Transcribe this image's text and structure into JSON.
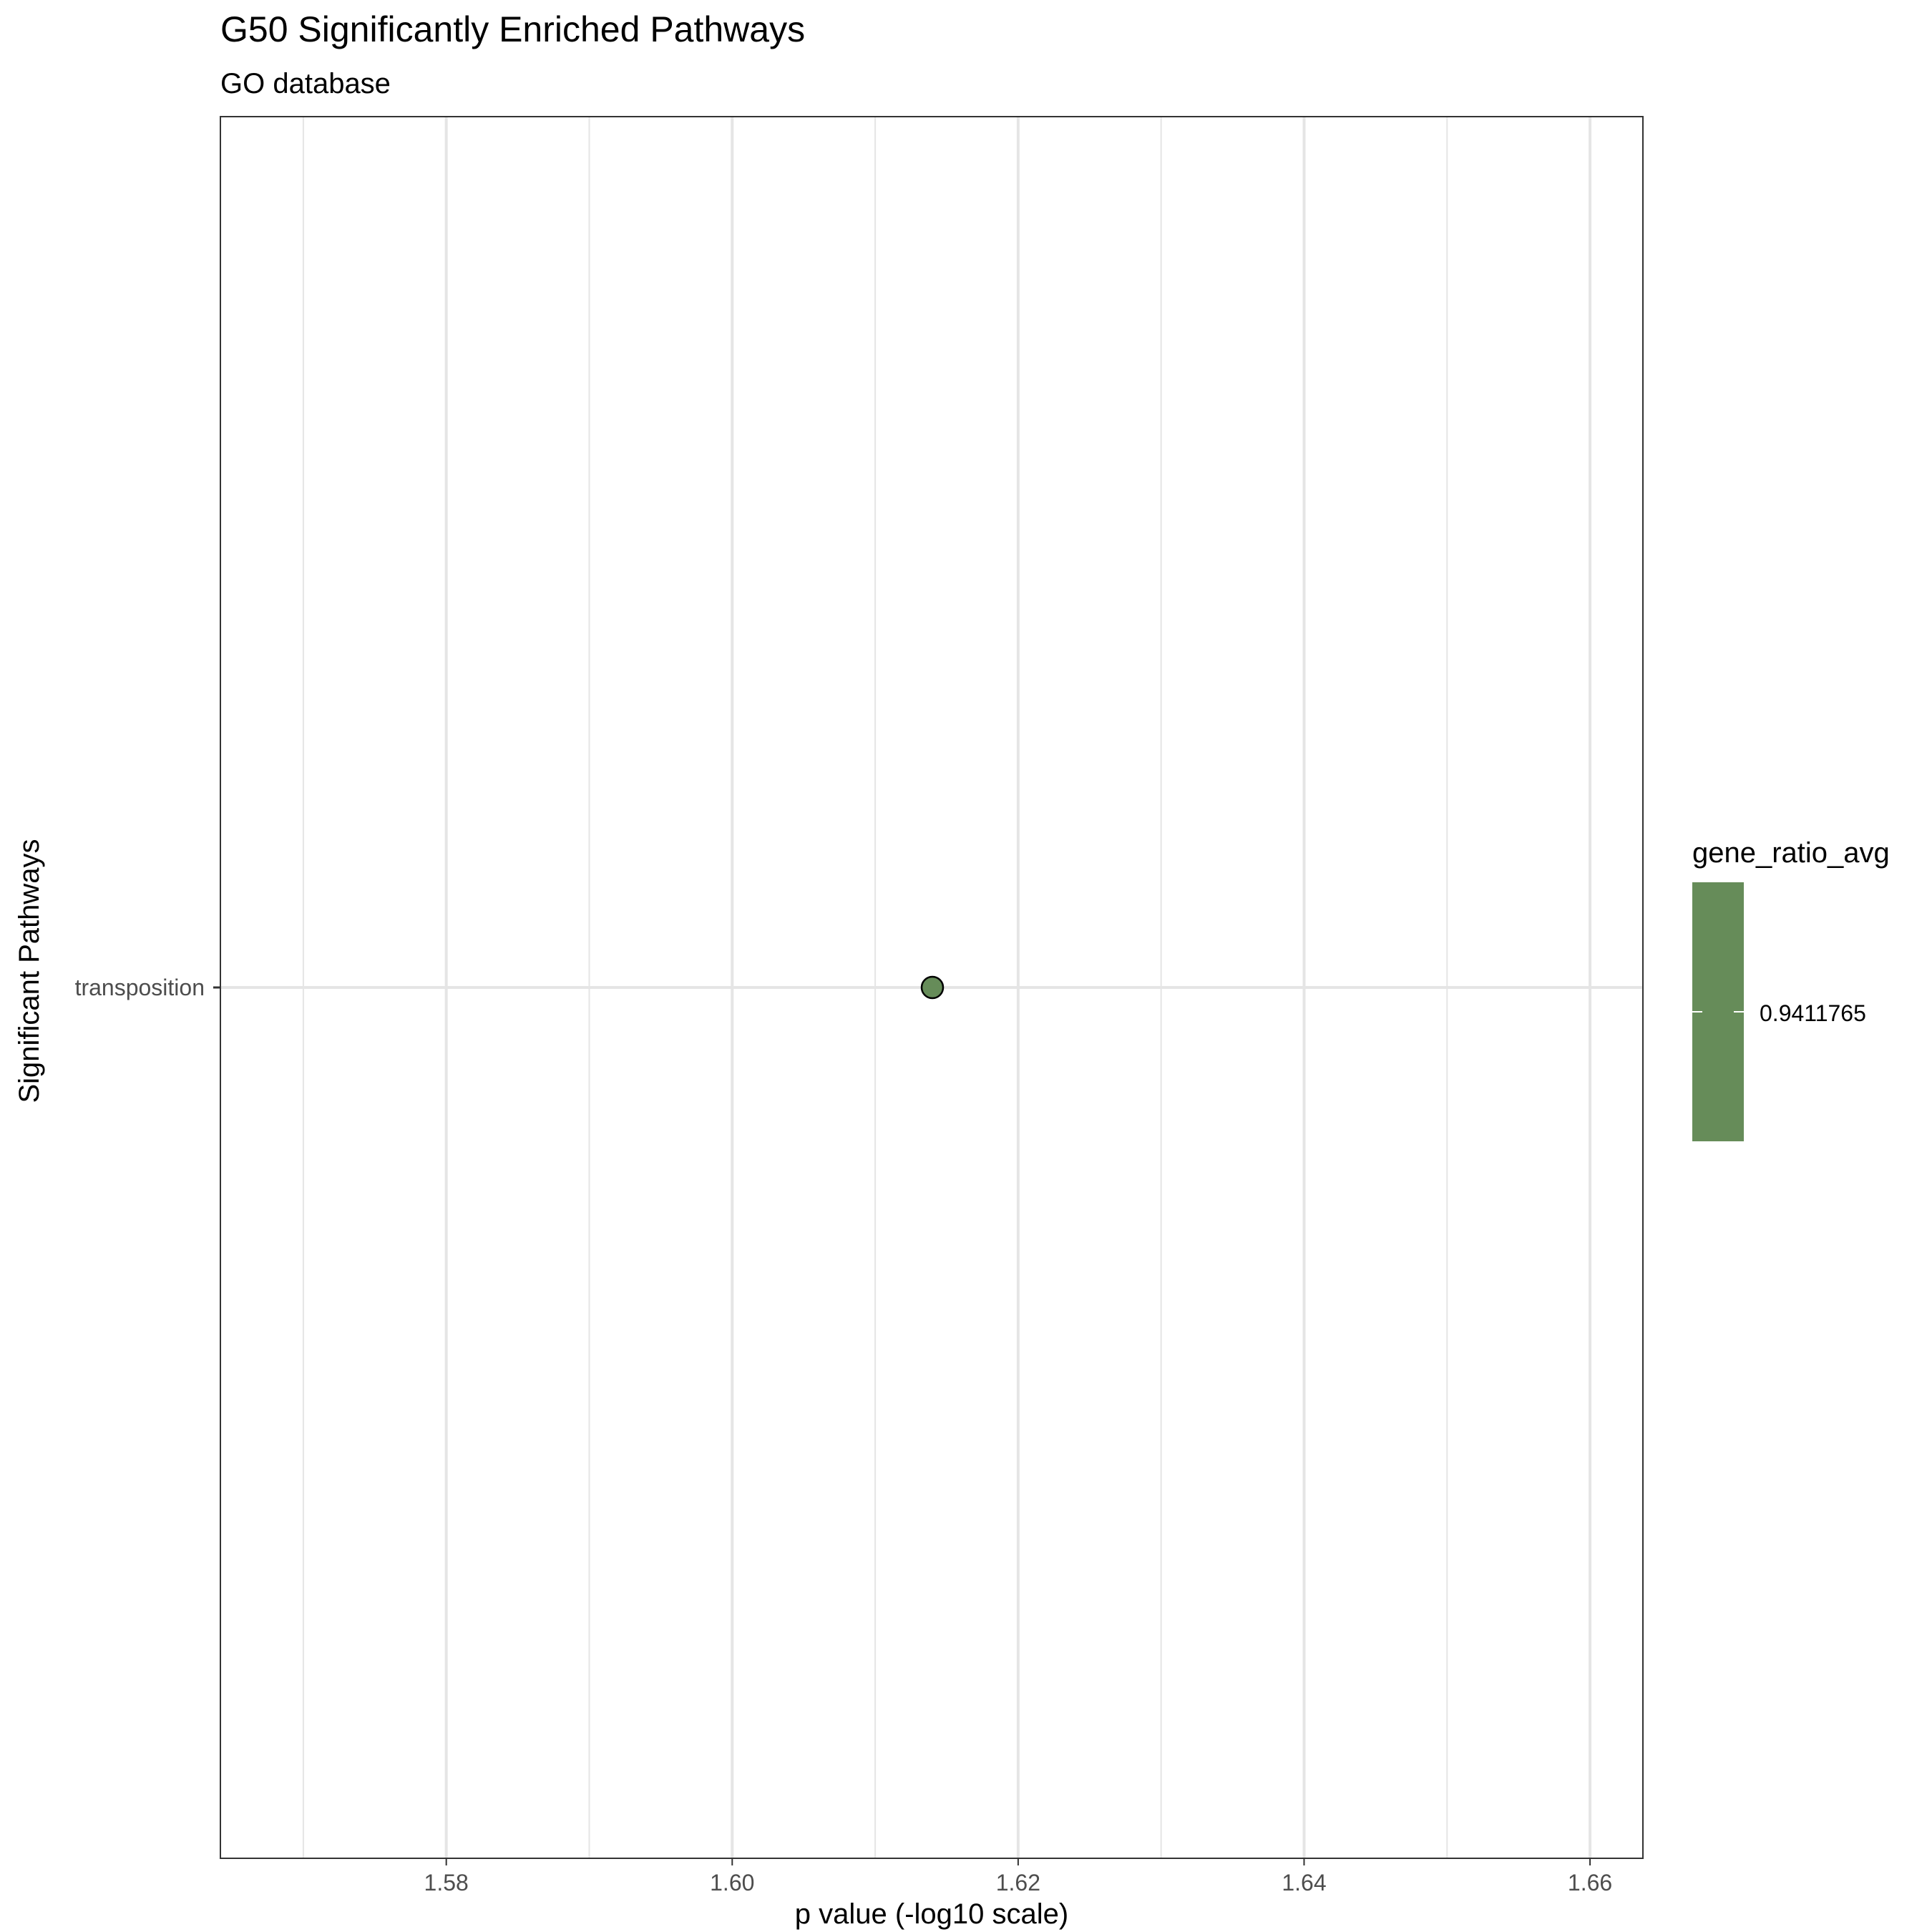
{
  "chart_data": {
    "type": "scatter",
    "title": "G50 Significantly Enriched Pathways",
    "subtitle": "GO database",
    "xlabel": "p value (-log10 scale)",
    "ylabel": "Significant Pathways",
    "xlim": [
      1.5642,
      1.6637
    ],
    "x_ticks": [
      1.58,
      1.6,
      1.62,
      1.64,
      1.66
    ],
    "x_tick_labels": [
      "1.58",
      "1.60",
      "1.62",
      "1.64",
      "1.66"
    ],
    "x_minor_ticks": [
      1.57,
      1.59,
      1.61,
      1.63,
      1.65
    ],
    "categories": [
      "transposition"
    ],
    "grid": true,
    "points": [
      {
        "category": "transposition",
        "x": 1.614,
        "gene_ratio_avg": 0.9411765,
        "color": "#668c59"
      }
    ],
    "legend": {
      "title": "gene_ratio_avg",
      "placement": "right",
      "labels": [
        "0.9411765"
      ],
      "color": "#668c59"
    },
    "colors": {
      "point_fill": "#668c59",
      "point_stroke": "#000000",
      "grid": "#e5e5e5",
      "panel_border": "#333333"
    }
  }
}
